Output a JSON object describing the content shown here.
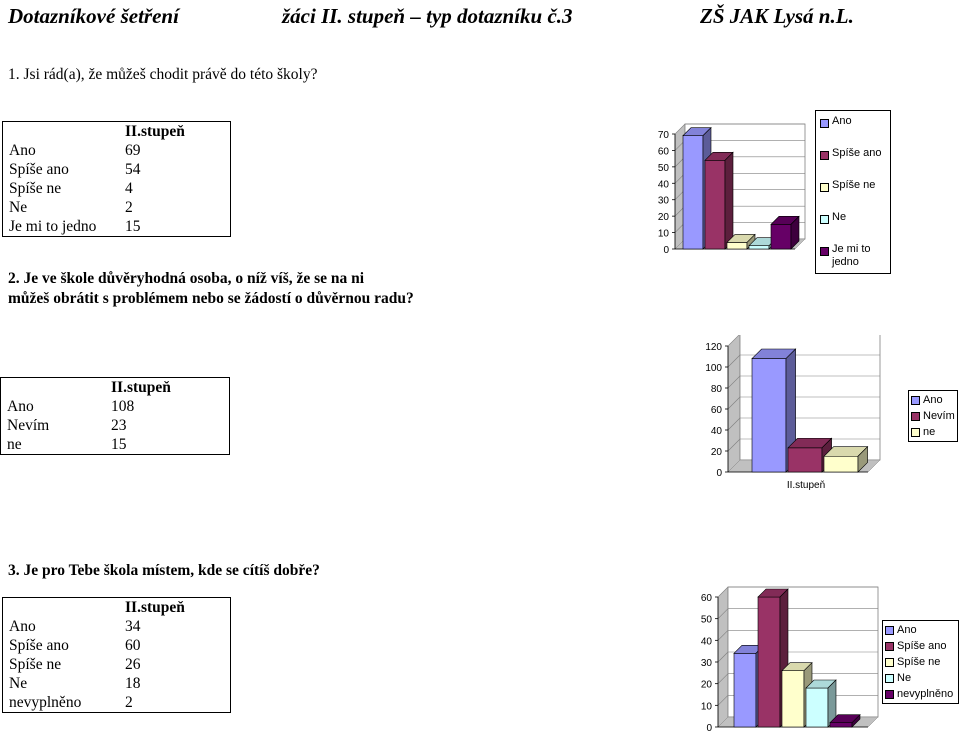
{
  "header": {
    "left": "Dotazníkové šetření",
    "middle": "žáci II. stupeň – typ dotazníku č.3",
    "right": "ZŠ JAK Lysá n.L."
  },
  "colors": {
    "c1": "#9999ff",
    "c2": "#993366",
    "c3": "#ffffcc",
    "c4": "#ccffff",
    "c5": "#660066"
  },
  "sections": [
    {
      "question": "1. Jsi rád(a), že můžeš chodit právě do této školy?",
      "table": {
        "header": "II.stupeň",
        "rows": [
          {
            "label": "Ano",
            "value": "69"
          },
          {
            "label": "Spíše ano",
            "value": "54"
          },
          {
            "label": "Spíše ne",
            "value": "4"
          },
          {
            "label": "Ne",
            "value": "2"
          },
          {
            "label": "Je mi to jedno",
            "value": "15"
          }
        ]
      }
    },
    {
      "question_line1": "2. Je ve škole důvěryhodná osoba, o níž víš, že se na ni",
      "question_line2": "můžeš obrátit s problémem nebo se žádostí o důvěrnou radu?",
      "table": {
        "header": "II.stupeň",
        "rows": [
          {
            "label": "Ano",
            "value": "108"
          },
          {
            "label": "Nevím",
            "value": "23"
          },
          {
            "label": "ne",
            "value": "15"
          }
        ]
      }
    },
    {
      "question": "3. Je pro Tebe škola místem, kde se cítíš dobře?",
      "table": {
        "header": "II.stupeň",
        "rows": [
          {
            "label": "Ano",
            "value": "34"
          },
          {
            "label": "Spíše ano",
            "value": "60"
          },
          {
            "label": "Spíše ne",
            "value": "26"
          },
          {
            "label": "Ne",
            "value": "18"
          },
          {
            "label": "nevyplněno",
            "value": "2"
          }
        ]
      }
    }
  ],
  "chart_data": [
    {
      "type": "bar",
      "categories": [
        ""
      ],
      "series": [
        {
          "name": "Ano",
          "values": [
            69
          ]
        },
        {
          "name": "Spíše ano",
          "values": [
            54
          ]
        },
        {
          "name": "Spíše ne",
          "values": [
            4
          ]
        },
        {
          "name": "Ne",
          "values": [
            2
          ]
        },
        {
          "name": "Je mi to jedno",
          "values": [
            15
          ]
        }
      ],
      "ylim": [
        0,
        70
      ],
      "yticks": [
        "0",
        "10",
        "20",
        "30",
        "40",
        "50",
        "60",
        "70"
      ],
      "legend": "right",
      "grid": true
    },
    {
      "type": "bar",
      "categories": [
        "II.stupeň"
      ],
      "series": [
        {
          "name": "Ano",
          "values": [
            108
          ]
        },
        {
          "name": "Nevím",
          "values": [
            23
          ]
        },
        {
          "name": "ne",
          "values": [
            15
          ]
        }
      ],
      "ylim": [
        0,
        120
      ],
      "yticks": [
        "0",
        "20",
        "40",
        "60",
        "80",
        "100",
        "120"
      ],
      "legend": "right",
      "grid": true
    },
    {
      "type": "bar",
      "categories": [
        ""
      ],
      "series": [
        {
          "name": "Ano",
          "values": [
            34
          ]
        },
        {
          "name": "Spíše ano",
          "values": [
            60
          ]
        },
        {
          "name": "Spíše ne",
          "values": [
            26
          ]
        },
        {
          "name": "Ne",
          "values": [
            18
          ]
        },
        {
          "name": "nevyplněno",
          "values": [
            2
          ]
        }
      ],
      "ylim": [
        0,
        60
      ],
      "yticks": [
        "0",
        "10",
        "20",
        "30",
        "40",
        "50",
        "60"
      ],
      "legend": "right",
      "grid": true
    }
  ]
}
